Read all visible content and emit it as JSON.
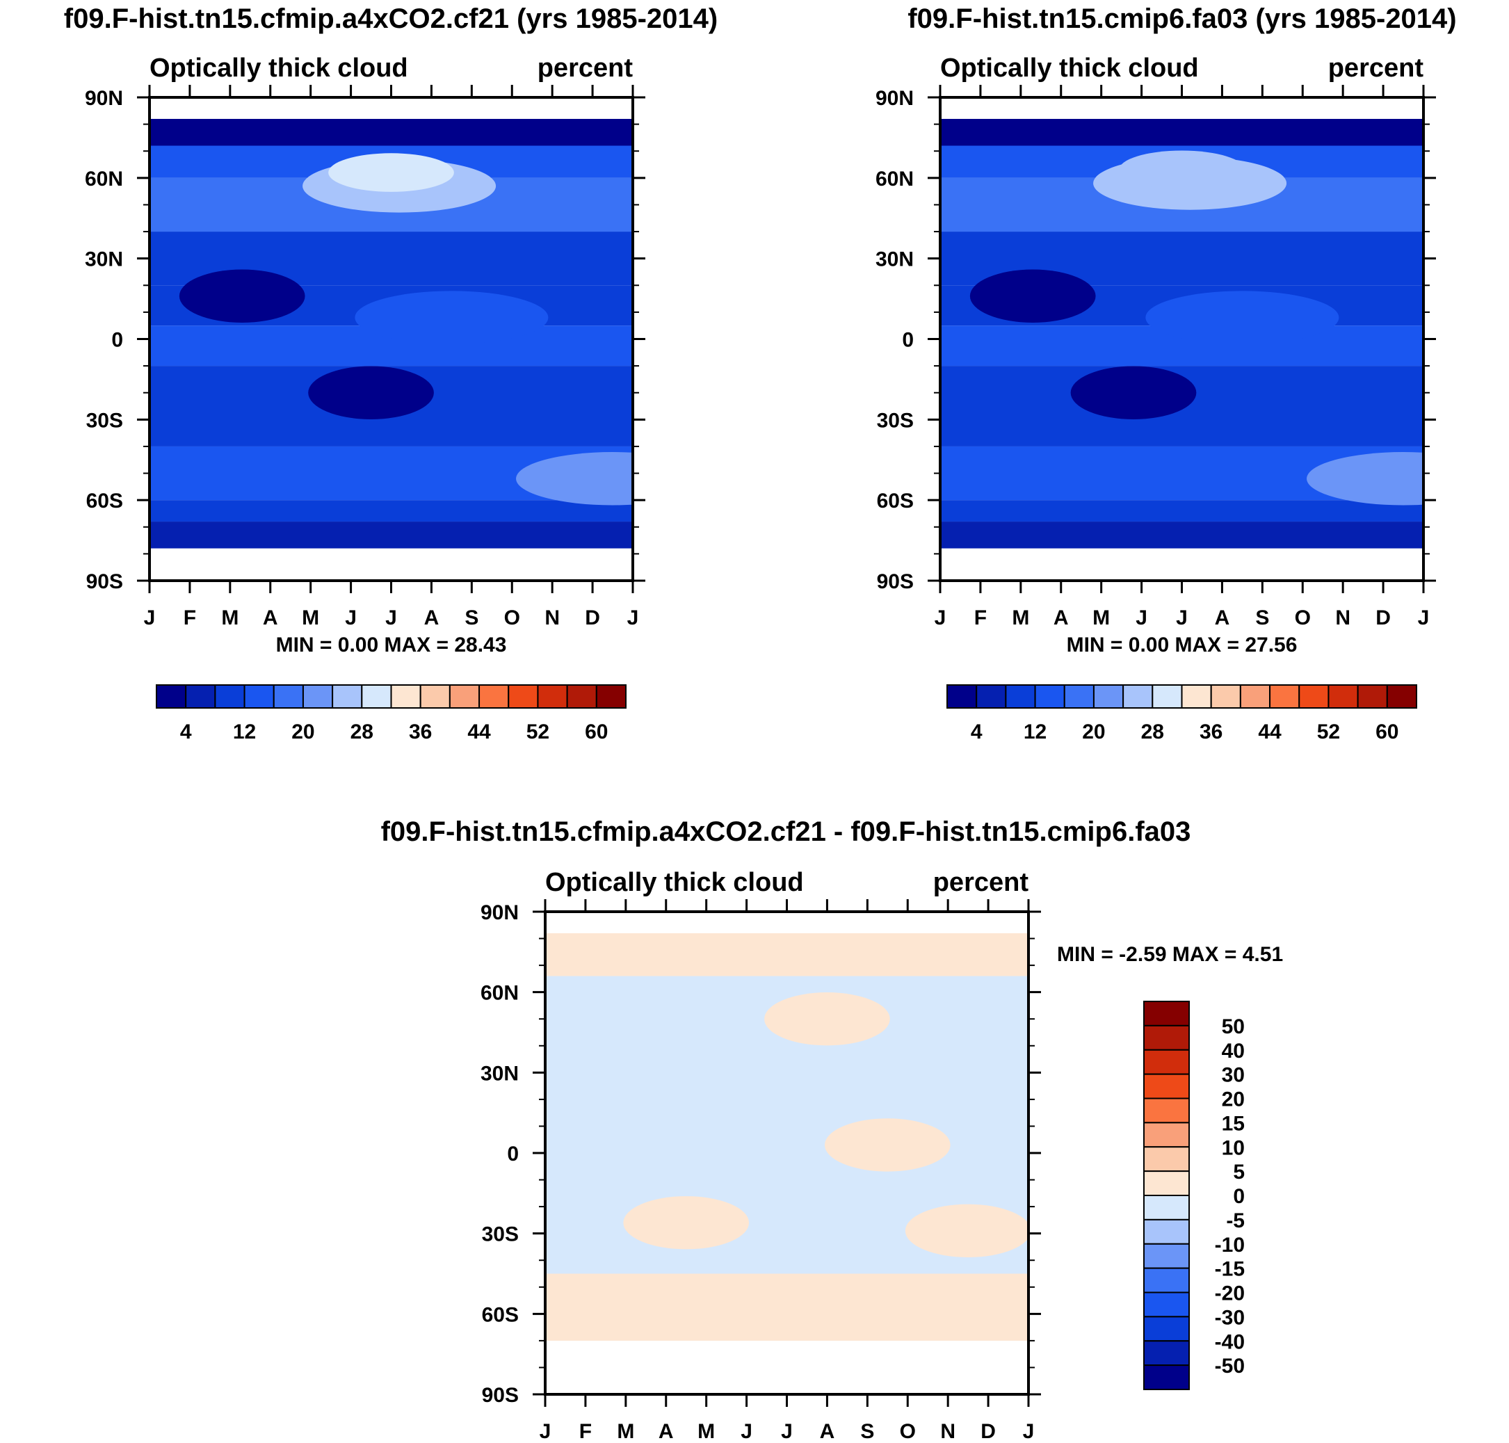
{
  "chart_data": [
    {
      "type": "heatmap",
      "title": "f09.F-hist.tn15.cfmip.a4xCO2.cf21 (yrs 1985-2014)",
      "left_string": "Optically thick cloud",
      "right_string": "percent",
      "x_tick_labels": [
        "J",
        "F",
        "M",
        "A",
        "M",
        "J",
        "J",
        "A",
        "S",
        "O",
        "N",
        "D",
        "J"
      ],
      "y_tick_labels": [
        "90N",
        "60N",
        "30N",
        "0",
        "30S",
        "60S",
        "90S"
      ],
      "ylim": [
        -90,
        90
      ],
      "min_max": "MIN =    0.00 MAX =  28.43",
      "colorbar": {
        "orientation": "horizontal",
        "colors": [
          "#00008a",
          "#0520b0",
          "#0a3ed8",
          "#1a56f0",
          "#3a72f5",
          "#6b95f7",
          "#a8c4fb",
          "#d6e8fc",
          "#fde6d2",
          "#fbcaab",
          "#f9a07a",
          "#fa7440",
          "#ee4a18",
          "#d12d0c",
          "#b01a08",
          "#850000"
        ],
        "labels": [
          "4",
          "12",
          "20",
          "28",
          "36",
          "44",
          "52",
          "60"
        ],
        "label_after_boxes": [
          1,
          3,
          5,
          7,
          9,
          11,
          13,
          15
        ]
      },
      "series": [
        {
          "name": "latitude band",
          "lat_range": [
            72,
            82
          ],
          "value": 3
        },
        {
          "name": "latitude band",
          "lat_range": [
            60,
            72
          ],
          "value": 14
        },
        {
          "name": "latitude band",
          "lat_range": [
            40,
            60
          ],
          "value": 16
        },
        {
          "name": "latitude band",
          "lat_range": [
            20,
            40
          ],
          "value": 10
        },
        {
          "name": "latitude band",
          "lat_range": [
            5,
            20
          ],
          "value": 8
        },
        {
          "name": "latitude band",
          "lat_range": [
            -10,
            5
          ],
          "value": 12
        },
        {
          "name": "latitude band",
          "lat_range": [
            -40,
            -10
          ],
          "value": 8
        },
        {
          "name": "latitude band",
          "lat_range": [
            -60,
            -40
          ],
          "value": 14
        },
        {
          "name": "latitude band",
          "lat_range": [
            -68,
            -60
          ],
          "value": 9
        },
        {
          "name": "latitude band",
          "lat_range": [
            -78,
            -68
          ],
          "value": 4
        }
      ],
      "features": [
        {
          "name": "summer maximum",
          "month_center": 6.2,
          "lat_center": 57,
          "value": 27
        },
        {
          "name": "summer core",
          "month_center": 6.0,
          "lat_center": 62,
          "value": 28
        },
        {
          "name": "nh subtropical minimum",
          "month_center": 2.3,
          "lat_center": 16,
          "value": 2
        },
        {
          "name": "sh subtropical minimum",
          "month_center": 5.5,
          "lat_center": -20,
          "value": 2
        },
        {
          "name": "southern ocean maximum",
          "month_center": 11.5,
          "lat_center": -52,
          "value": 20
        },
        {
          "name": "equatorial band",
          "month_center": 7.5,
          "lat_center": 8,
          "value": 14
        }
      ]
    },
    {
      "type": "heatmap",
      "title": "f09.F-hist.tn15.cmip6.fa03 (yrs 1985-2014)",
      "left_string": "Optically thick cloud",
      "right_string": "percent",
      "x_tick_labels": [
        "J",
        "F",
        "M",
        "A",
        "M",
        "J",
        "J",
        "A",
        "S",
        "O",
        "N",
        "D",
        "J"
      ],
      "y_tick_labels": [
        "90N",
        "60N",
        "30N",
        "0",
        "30S",
        "60S",
        "90S"
      ],
      "ylim": [
        -90,
        90
      ],
      "min_max": "MIN =    0.00 MAX =  27.56",
      "colorbar": {
        "orientation": "horizontal",
        "colors": [
          "#00008a",
          "#0520b0",
          "#0a3ed8",
          "#1a56f0",
          "#3a72f5",
          "#6b95f7",
          "#a8c4fb",
          "#d6e8fc",
          "#fde6d2",
          "#fbcaab",
          "#f9a07a",
          "#fa7440",
          "#ee4a18",
          "#d12d0c",
          "#b01a08",
          "#850000"
        ],
        "labels": [
          "4",
          "12",
          "20",
          "28",
          "36",
          "44",
          "52",
          "60"
        ],
        "label_after_boxes": [
          1,
          3,
          5,
          7,
          9,
          11,
          13,
          15
        ]
      },
      "series": [
        {
          "name": "latitude band",
          "lat_range": [
            72,
            82
          ],
          "value": 3
        },
        {
          "name": "latitude band",
          "lat_range": [
            60,
            72
          ],
          "value": 14
        },
        {
          "name": "latitude band",
          "lat_range": [
            40,
            60
          ],
          "value": 16
        },
        {
          "name": "latitude band",
          "lat_range": [
            20,
            40
          ],
          "value": 10
        },
        {
          "name": "latitude band",
          "lat_range": [
            5,
            20
          ],
          "value": 8
        },
        {
          "name": "latitude band",
          "lat_range": [
            -10,
            5
          ],
          "value": 12
        },
        {
          "name": "latitude band",
          "lat_range": [
            -40,
            -10
          ],
          "value": 8
        },
        {
          "name": "latitude band",
          "lat_range": [
            -60,
            -40
          ],
          "value": 14
        },
        {
          "name": "latitude band",
          "lat_range": [
            -68,
            -60
          ],
          "value": 9
        },
        {
          "name": "latitude band",
          "lat_range": [
            -78,
            -68
          ],
          "value": 4
        }
      ],
      "features": [
        {
          "name": "summer maximum",
          "month_center": 6.2,
          "lat_center": 58,
          "value": 26
        },
        {
          "name": "summer core",
          "month_center": 6.0,
          "lat_center": 63,
          "value": 27
        },
        {
          "name": "nh subtropical minimum",
          "month_center": 2.3,
          "lat_center": 16,
          "value": 2
        },
        {
          "name": "sh subtropical minimum",
          "month_center": 4.8,
          "lat_center": -20,
          "value": 2
        },
        {
          "name": "southern ocean maximum",
          "month_center": 11.5,
          "lat_center": -52,
          "value": 20
        },
        {
          "name": "equatorial band",
          "month_center": 7.5,
          "lat_center": 8,
          "value": 14
        }
      ]
    },
    {
      "type": "heatmap",
      "title": "f09.F-hist.tn15.cfmip.a4xCO2.cf21 - f09.F-hist.tn15.cmip6.fa03",
      "left_string": "Optically thick cloud",
      "right_string": "percent",
      "x_tick_labels": [
        "J",
        "F",
        "M",
        "A",
        "M",
        "J",
        "J",
        "A",
        "S",
        "O",
        "N",
        "D",
        "J"
      ],
      "y_tick_labels": [
        "90N",
        "60N",
        "30N",
        "0",
        "30S",
        "60S",
        "90S"
      ],
      "ylim": [
        -90,
        90
      ],
      "min_max": "MIN =  -2.59 MAX =   4.51",
      "colorbar": {
        "orientation": "vertical",
        "colors_top_to_bottom": [
          "#850000",
          "#b01a08",
          "#d12d0c",
          "#ee4a18",
          "#fa7440",
          "#f9a07a",
          "#fbcaab",
          "#fde6d2",
          "#d6e8fc",
          "#a8c4fb",
          "#6b95f7",
          "#3a72f5",
          "#1a56f0",
          "#0a3ed8",
          "#0520b0",
          "#00008a"
        ],
        "labels": [
          "50",
          "40",
          "30",
          "20",
          "15",
          "10",
          "5",
          "0",
          "-5",
          "-10",
          "-15",
          "-20",
          "-30",
          "-40",
          "-50"
        ]
      },
      "series": [
        {
          "name": "difference band",
          "lat_range": [
            66,
            82
          ],
          "value": 0.5
        },
        {
          "name": "difference band",
          "lat_range": [
            45,
            66
          ],
          "value": -0.5
        },
        {
          "name": "difference band",
          "lat_range": [
            -45,
            45
          ],
          "value": -1.0
        },
        {
          "name": "difference band",
          "lat_range": [
            -70,
            -45
          ],
          "value": 1.0
        }
      ],
      "features": [
        {
          "name": "positive patch",
          "month_center": 7.0,
          "lat_center": 50,
          "value": 2
        },
        {
          "name": "positive patch",
          "month_center": 8.5,
          "lat_center": 3,
          "value": 2
        },
        {
          "name": "positive patch",
          "month_center": 3.5,
          "lat_center": -26,
          "value": 2
        },
        {
          "name": "positive patch",
          "month_center": 10.5,
          "lat_center": -29,
          "value": 2
        }
      ]
    }
  ]
}
